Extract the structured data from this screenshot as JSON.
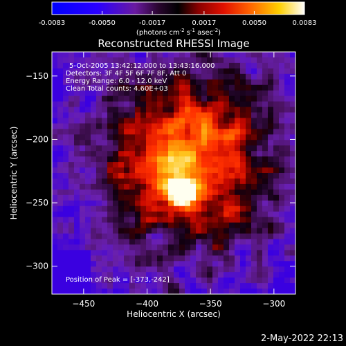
{
  "chart_data": {
    "type": "heatmap",
    "title": "Reconstructed RHESSI Image",
    "xlabel": "Heliocentric X (arcsec)",
    "ylabel": "Heliocentric Y (arcsec)",
    "xlim": [
      -475,
      -283
    ],
    "ylim": [
      -322,
      -131
    ],
    "xticks": [
      -450,
      -400,
      -350,
      -300
    ],
    "yticks": [
      -150,
      -200,
      -250,
      -300
    ],
    "colorbar": {
      "min": -0.0083,
      "max": 0.0083,
      "ticks": [
        "-0.0083",
        "-0.0050",
        "-0.0017",
        "0.0017",
        "0.0050",
        "0.0083"
      ],
      "tick_values": [
        -0.0083,
        -0.005,
        -0.0017,
        0.0017,
        0.005,
        0.0083
      ],
      "units": "(photons cm",
      "unit_exp1": "-2",
      "unit_mid": " s",
      "unit_exp2": "-1",
      "unit_end": " asec",
      "unit_exp3": "-2",
      "unit_close": ")"
    },
    "annotations": {
      "time": "5-Oct-2005 13:42:12.000 to 13:43:16.000",
      "detectors": "Detectors: 3F 4F 5F 6F 7F 8F, Att 0",
      "energy": "Energy Range: 6.0 - 12.0 keV",
      "clean": "Clean     Total counts: 4.60E+03",
      "peak": "Position of Peak = [-373,-242]"
    },
    "peak": {
      "x": -373,
      "y": -242
    },
    "grid": false,
    "colormap": [
      "#000000",
      "#3a0a70",
      "#1f00ff",
      "#7a1bff",
      "#000000",
      "#c00000",
      "#ff3000",
      "#ff9000",
      "#ffe000",
      "#ffffff"
    ]
  },
  "footer": {
    "date": "2-May-2022 22:13"
  }
}
